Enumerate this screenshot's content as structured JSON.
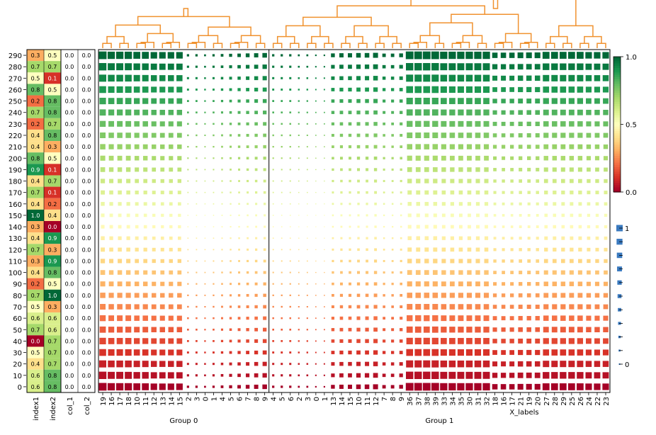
{
  "chart_data": {
    "type": "heatmap",
    "row_labels": [
      "290",
      "280",
      "270",
      "260",
      "250",
      "240",
      "230",
      "220",
      "210",
      "200",
      "190",
      "180",
      "170",
      "160",
      "150",
      "140",
      "130",
      "120",
      "110",
      "100",
      "90",
      "80",
      "70",
      "60",
      "50",
      "40",
      "30",
      "20",
      "10",
      "0"
    ],
    "highlighted_rows": [
      "290",
      "280",
      "270",
      "260",
      "250"
    ],
    "highlight_color": "#d62728",
    "row_annotations": {
      "columns": [
        "index1",
        "index2",
        "col_1",
        "col_2"
      ],
      "index1": [
        0.3,
        0.7,
        0.5,
        0.8,
        0.2,
        0.7,
        0.2,
        0.4,
        0.4,
        0.8,
        0.9,
        0.4,
        0.7,
        0.4,
        1.0,
        0.3,
        0.4,
        0.7,
        0.3,
        0.4,
        0.2,
        0.7,
        0.5,
        0.6,
        0.7,
        0.0,
        0.5,
        0.4,
        0.6,
        0.6
      ],
      "index2": [
        0.5,
        0.7,
        0.1,
        0.5,
        0.8,
        0.8,
        0.7,
        0.8,
        0.3,
        0.5,
        0.1,
        0.7,
        0.1,
        0.2,
        0.4,
        0.0,
        0.9,
        0.3,
        0.9,
        0.8,
        0.5,
        1.0,
        0.3,
        0.6,
        0.6,
        0.7,
        0.7,
        0.7,
        0.8,
        0.8
      ],
      "col_1": [
        0.0,
        0.0,
        0.0,
        0.0,
        0.0,
        0.0,
        0.0,
        0.0,
        0.0,
        0.0,
        0.0,
        0.0,
        0.0,
        0.0,
        0.0,
        0.0,
        0.0,
        0.0,
        0.0,
        0.0,
        0.0,
        0.0,
        0.0,
        0.0,
        0.0,
        0.0,
        0.0,
        0.0,
        0.0,
        0.0
      ],
      "col_2": [
        0.0,
        0.0,
        0.0,
        0.0,
        0.0,
        0.0,
        0.0,
        0.0,
        0.0,
        0.0,
        0.0,
        0.0,
        0.0,
        0.0,
        0.0,
        0.0,
        0.0,
        0.0,
        0.0,
        0.0,
        0.0,
        0.0,
        0.0,
        0.0,
        0.0,
        0.0,
        0.0,
        0.0,
        0.0,
        0.0
      ]
    },
    "groups": [
      {
        "name": "Group 0",
        "columns": [
          "19",
          "16",
          "17",
          "18",
          "10",
          "11",
          "12",
          "13",
          "14",
          "15",
          "2",
          "3",
          "0",
          "1",
          "4",
          "5",
          "6",
          "7",
          "8",
          "9"
        ]
      },
      {
        "name": "Group 1",
        "columns": [
          "4",
          "5",
          "6",
          "2",
          "3",
          "0",
          "1",
          "13",
          "14",
          "15",
          "10",
          "11",
          "12",
          "7",
          "8",
          "9",
          "36",
          "37",
          "38",
          "39",
          "33",
          "34",
          "35",
          "30",
          "31",
          "32",
          "18",
          "16",
          "17",
          "21",
          "19",
          "20",
          "27",
          "28",
          "29",
          "25",
          "26",
          "24",
          "22",
          "23"
        ]
      }
    ],
    "column_size": [
      1.0,
      0.95,
      0.95,
      0.95,
      0.9,
      0.9,
      0.85,
      0.85,
      0.85,
      0.85,
      0.3,
      0.3,
      0.25,
      0.3,
      0.35,
      0.4,
      0.45,
      0.5,
      0.55,
      0.6,
      0.3,
      0.3,
      0.3,
      0.25,
      0.25,
      0.2,
      0.2,
      0.5,
      0.55,
      0.55,
      0.6,
      0.6,
      0.65,
      0.45,
      0.45,
      0.5,
      1.0,
      1.0,
      1.0,
      1.0,
      0.95,
      0.95,
      0.95,
      0.95,
      0.95,
      0.95,
      0.7,
      0.7,
      0.7,
      0.75,
      0.75,
      0.75,
      0.9,
      0.9,
      0.9,
      0.9,
      0.9,
      0.85,
      0.85,
      0.85
    ],
    "xlabel": "X_labels",
    "colorbar": {
      "ticks": [
        "1.0",
        "0.5",
        "0.0"
      ],
      "min": 0.0,
      "max": 1.0,
      "colormap": "RdYlGn"
    },
    "size_legend": {
      "labels": [
        "1",
        "",
        "",
        "",
        "",
        "",
        "",
        "",
        "",
        "",
        "0"
      ]
    }
  }
}
